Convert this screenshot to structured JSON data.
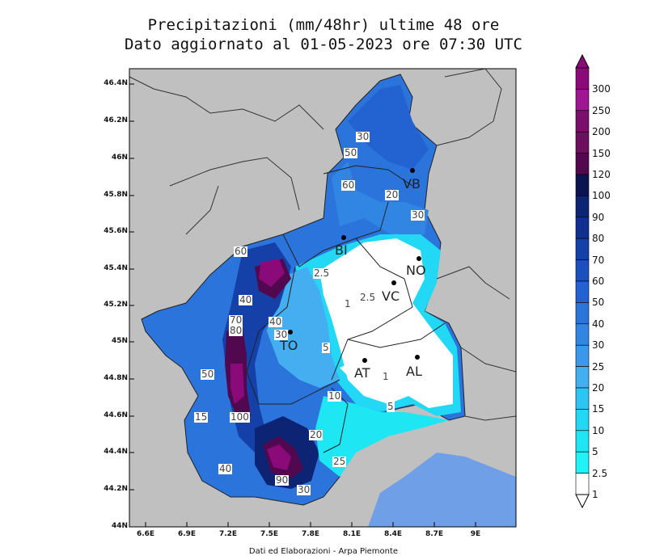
{
  "title_line1": "Precipitazioni (mm/48hr) ultime 48 ore",
  "title_line2": "Dato aggiornato al 01-05-2023 ore 07:30 UTC",
  "footer": "Dati ed Elaborazioni - Arpa Piemonte",
  "y_ticks": [
    "46.4N",
    "46.2N",
    "46N",
    "45.8N",
    "45.6N",
    "45.4N",
    "45.2N",
    "45N",
    "44.8N",
    "44.6N",
    "44.4N",
    "44.2N",
    "44N"
  ],
  "x_ticks": [
    "6.6E",
    "6.9E",
    "7.2E",
    "7.5E",
    "7.8E",
    "8.1E",
    "8.4E",
    "8.7E",
    "9E"
  ],
  "colorbar": {
    "levels": [
      "300",
      "250",
      "200",
      "150",
      "120",
      "100",
      "90",
      "80",
      "70",
      "60",
      "50",
      "40",
      "30",
      "25",
      "20",
      "15",
      "10",
      "5",
      "2.5",
      "1"
    ],
    "colors": [
      "#8b0a7a",
      "#9e1690",
      "#7a0f6e",
      "#6c0f5e",
      "#52084f",
      "#0a1550",
      "#0d2373",
      "#10308f",
      "#1540a8",
      "#1b50bf",
      "#2262d1",
      "#2a74dc",
      "#3286e3",
      "#3b98ea",
      "#44aef0",
      "#2fc5f3",
      "#22d8f5",
      "#1ee6f3",
      "#20f2f5",
      "#ffffff"
    ]
  },
  "cities": [
    {
      "id": "vb",
      "name": "VB"
    },
    {
      "id": "bi",
      "name": "BI"
    },
    {
      "id": "no",
      "name": "NO"
    },
    {
      "id": "vc",
      "name": "VC"
    },
    {
      "id": "to",
      "name": "TO"
    },
    {
      "id": "at",
      "name": "AT"
    },
    {
      "id": "al",
      "name": "AL"
    }
  ],
  "contour_labels": [
    "30",
    "50",
    "60",
    "20",
    "30",
    "2.5",
    "2.5",
    "1",
    "40",
    "30",
    "5",
    "70",
    "80",
    "60",
    "50",
    "1",
    "10",
    "5",
    "100",
    "15",
    "20",
    "40",
    "25",
    "30",
    "90",
    "40"
  ],
  "colors": {
    "background_land": "#c0c0c0",
    "sea": "#6f9fe6",
    "frame": "#000000"
  }
}
